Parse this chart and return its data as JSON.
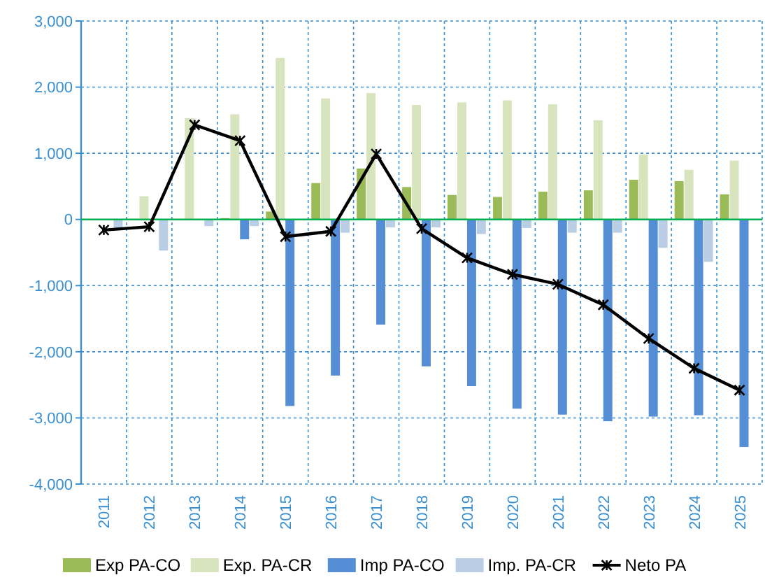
{
  "chart_data": {
    "type": "bar",
    "categories": [
      "2011",
      "2012",
      "2013",
      "2014",
      "2015",
      "2016",
      "2017",
      "2018",
      "2019",
      "2020",
      "2021",
      "2022",
      "2023",
      "2024",
      "2025"
    ],
    "series": [
      {
        "name": "Exp PA-CO",
        "color": "#9bbb59",
        "values": [
          0,
          0,
          0,
          20,
          120,
          550,
          770,
          490,
          370,
          340,
          420,
          440,
          600,
          580,
          380
        ]
      },
      {
        "name": "Exp. PA-CR",
        "color": "#d7e4bd",
        "values": [
          0,
          350,
          1530,
          1590,
          2440,
          1830,
          1910,
          1730,
          1770,
          1800,
          1740,
          1500,
          980,
          750,
          890
        ]
      },
      {
        "name": "Imp PA-CO",
        "color": "#558ed5",
        "values": [
          0,
          0,
          0,
          -300,
          -2820,
          -2360,
          -1590,
          -2220,
          -2520,
          -2860,
          -2950,
          -3050,
          -2980,
          -2960,
          -3440
        ]
      },
      {
        "name": "Imp. PA-CR",
        "color": "#b9cde5",
        "values": [
          -150,
          -470,
          -100,
          -100,
          null,
          -200,
          -120,
          -120,
          -220,
          -130,
          -200,
          -200,
          -430,
          -640,
          null
        ]
      },
      {
        "name": "Neto PA",
        "type": "line",
        "color": "#000000",
        "marker": "cross",
        "values": [
          -160,
          -110,
          1430,
          1190,
          -260,
          -180,
          990,
          -140,
          -580,
          -830,
          -980,
          -1290,
          -1800,
          -2250,
          -2580
        ]
      }
    ],
    "ylim": [
      -4000,
      3000
    ],
    "yticks": [
      {
        "value": -4000,
        "label": "-4,000"
      },
      {
        "value": -3000,
        "label": "-3,000"
      },
      {
        "value": -2000,
        "label": "-2,000"
      },
      {
        "value": -1000,
        "label": "-1,000"
      },
      0,
      {
        "value": 1000,
        "label": "1,000"
      },
      {
        "value": 2000,
        "label": "2,000"
      },
      {
        "value": 3000,
        "label": "3,000"
      }
    ],
    "ref_lines": [
      {
        "axis": "y",
        "value": 0,
        "color": "#00b050"
      }
    ],
    "grid": true,
    "legend": "bottom"
  }
}
